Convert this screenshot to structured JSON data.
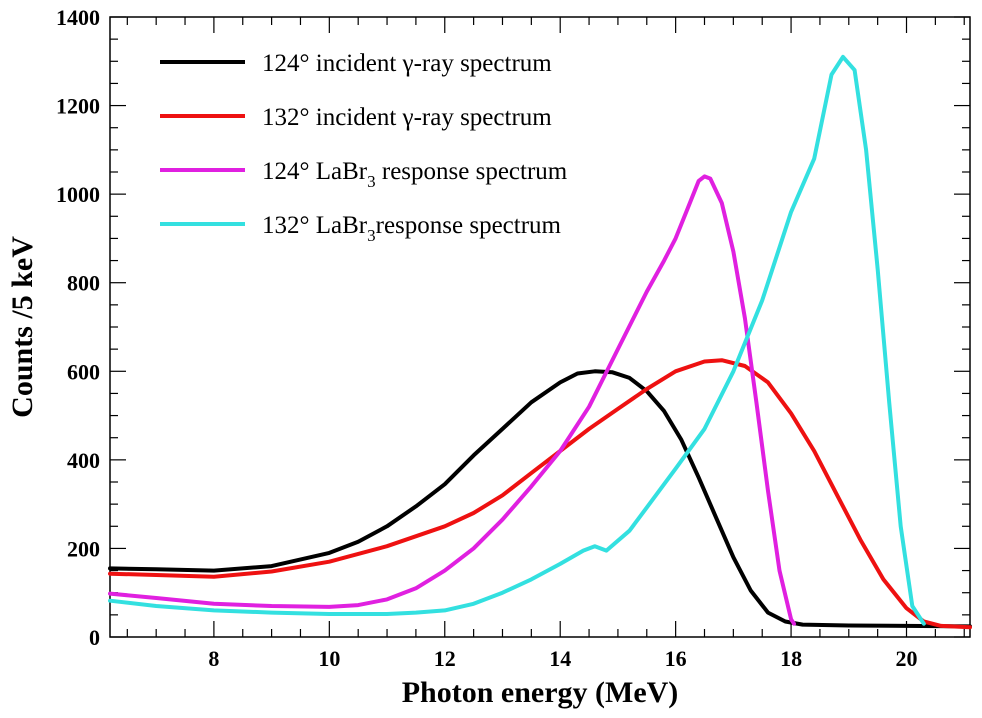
{
  "chart_data": {
    "type": "line",
    "title": "",
    "xlabel": "Photon energy (MeV)",
    "ylabel": "Counts /5 keV",
    "xlim": [
      6.2,
      21.1
    ],
    "ylim": [
      0,
      1400
    ],
    "xticks": [
      8,
      10,
      12,
      14,
      16,
      18,
      20
    ],
    "xtick_labels": [
      "8",
      "10",
      "12",
      "14",
      "16",
      "18",
      "20"
    ],
    "yticks": [
      0,
      200,
      400,
      600,
      800,
      1000,
      1200,
      1400
    ],
    "ytick_labels": [
      "0",
      "200",
      "400",
      "600",
      "800",
      "1000",
      "1200",
      "1400"
    ],
    "legend_position": "top-left",
    "series": [
      {
        "name": "124° incident γ-ray spectrum",
        "legend": {
          "prefix": "124° incident γ-ray spectrum",
          "sub": "",
          "suffix": ""
        },
        "color": "#000000",
        "x": [
          6.2,
          7.0,
          8.0,
          9.0,
          10.0,
          10.5,
          11.0,
          11.5,
          12.0,
          12.5,
          13.0,
          13.5,
          14.0,
          14.3,
          14.6,
          14.9,
          15.2,
          15.5,
          15.8,
          16.1,
          16.4,
          16.7,
          17.0,
          17.3,
          17.6,
          17.9,
          18.2,
          19.0,
          20.0,
          21.1
        ],
        "y": [
          155,
          153,
          150,
          160,
          190,
          215,
          250,
          295,
          345,
          410,
          470,
          530,
          575,
          595,
          600,
          598,
          585,
          555,
          510,
          445,
          360,
          270,
          180,
          105,
          55,
          35,
          28,
          26,
          25,
          24
        ]
      },
      {
        "name": "132° incident γ-ray spectrum",
        "legend": {
          "prefix": "132° incident γ-ray spectrum",
          "sub": "",
          "suffix": ""
        },
        "color": "#ee1111",
        "x": [
          6.2,
          7.0,
          8.0,
          9.0,
          10.0,
          11.0,
          12.0,
          12.5,
          13.0,
          13.5,
          14.0,
          14.5,
          15.0,
          15.5,
          16.0,
          16.5,
          16.8,
          17.2,
          17.6,
          18.0,
          18.4,
          18.8,
          19.2,
          19.6,
          20.0,
          20.3,
          20.6,
          21.1
        ],
        "y": [
          143,
          140,
          136,
          148,
          170,
          205,
          250,
          280,
          320,
          370,
          420,
          470,
          515,
          560,
          600,
          622,
          625,
          612,
          575,
          505,
          420,
          320,
          220,
          130,
          65,
          35,
          25,
          22
        ]
      },
      {
        "name": "124° LaBr3 response spectrum",
        "legend": {
          "prefix": "124° LaBr",
          "sub": "3",
          "suffix": " response spectrum"
        },
        "color": "#e020e0",
        "x": [
          6.2,
          7.0,
          8.0,
          9.0,
          10.0,
          10.5,
          11.0,
          11.5,
          12.0,
          12.5,
          13.0,
          13.5,
          14.0,
          14.5,
          15.0,
          15.5,
          15.8,
          16.0,
          16.2,
          16.4,
          16.5,
          16.6,
          16.8,
          17.0,
          17.2,
          17.4,
          17.6,
          17.8,
          18.0,
          18.05
        ],
        "y": [
          98,
          88,
          75,
          70,
          68,
          72,
          85,
          110,
          150,
          200,
          265,
          340,
          420,
          520,
          650,
          780,
          850,
          900,
          965,
          1030,
          1040,
          1035,
          980,
          870,
          720,
          530,
          330,
          150,
          40,
          30
        ]
      },
      {
        "name": "132° LaBr3response spectrum",
        "legend": {
          "prefix": "132° LaBr",
          "sub": "3",
          "suffix": "response spectrum"
        },
        "color": "#33e0e0",
        "x": [
          6.2,
          7.0,
          8.0,
          9.0,
          10.0,
          11.0,
          11.5,
          12.0,
          12.5,
          13.0,
          13.5,
          14.0,
          14.4,
          14.6,
          14.8,
          15.2,
          15.6,
          16.0,
          16.5,
          17.0,
          17.5,
          18.0,
          18.4,
          18.7,
          18.9,
          19.1,
          19.3,
          19.5,
          19.7,
          19.9,
          20.1,
          20.3
        ],
        "y": [
          82,
          70,
          60,
          55,
          52,
          52,
          55,
          60,
          75,
          100,
          130,
          165,
          195,
          205,
          195,
          240,
          310,
          380,
          470,
          600,
          760,
          960,
          1080,
          1270,
          1310,
          1280,
          1100,
          830,
          530,
          250,
          70,
          30
        ]
      }
    ]
  }
}
